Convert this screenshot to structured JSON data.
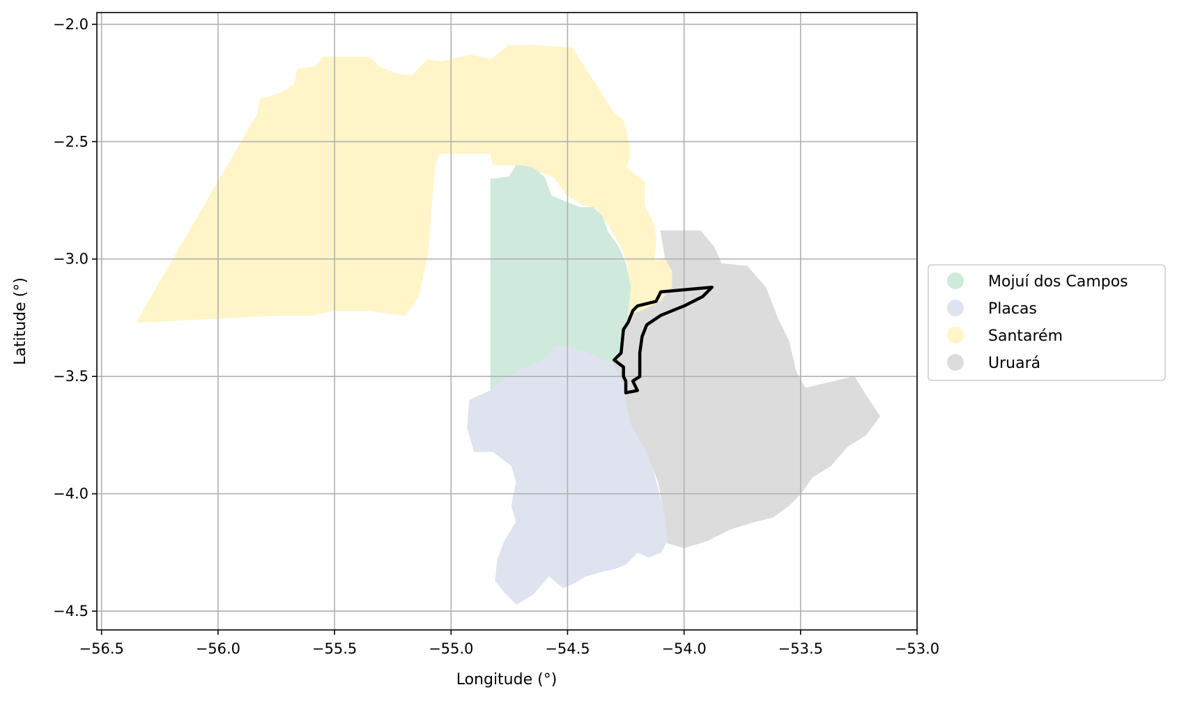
{
  "chart_data": {
    "type": "map",
    "xlabel": "Longitude (°)",
    "ylabel": "Latitude (°)",
    "xlim": [
      -56.52,
      -53.0
    ],
    "ylim": [
      -4.58,
      -1.95
    ],
    "grid": true,
    "x_ticks": [
      -56.5,
      -56.0,
      -55.5,
      -55.0,
      -54.5,
      -54.0,
      -53.5,
      -53.0
    ],
    "x_tick_labels": [
      "−56.5",
      "−56.0",
      "−55.5",
      "−55.0",
      "−54.5",
      "−54.0",
      "−53.5",
      "−53.0"
    ],
    "y_ticks": [
      -2.0,
      -2.5,
      -3.0,
      -3.5,
      -4.0,
      -4.5
    ],
    "y_tick_labels": [
      "−2.0",
      "−2.5",
      "−3.0",
      "−3.5",
      "−4.0",
      "−4.5"
    ],
    "legend_position": "center-right outside",
    "legend": [
      {
        "label": "Mojuí dos Campos",
        "color": "#cfeadc"
      },
      {
        "label": "Placas",
        "color": "#dfe3f0"
      },
      {
        "label": "Santarém",
        "color": "#fff5c8"
      },
      {
        "label": "Uruará",
        "color": "#dcdcdc"
      }
    ],
    "regions": [
      {
        "name": "Santarém",
        "color": "#fff5c8",
        "polygon": [
          [
            -56.35,
            -3.27
          ],
          [
            -55.83,
            -2.38
          ],
          [
            -55.82,
            -2.32
          ],
          [
            -55.72,
            -2.29
          ],
          [
            -55.67,
            -2.25
          ],
          [
            -55.66,
            -2.19
          ],
          [
            -55.58,
            -2.18
          ],
          [
            -55.55,
            -2.14
          ],
          [
            -55.35,
            -2.14
          ],
          [
            -55.31,
            -2.18
          ],
          [
            -55.24,
            -2.21
          ],
          [
            -55.17,
            -2.22
          ],
          [
            -55.1,
            -2.15
          ],
          [
            -55.04,
            -2.16
          ],
          [
            -54.92,
            -2.13
          ],
          [
            -54.83,
            -2.15
          ],
          [
            -54.75,
            -2.09
          ],
          [
            -54.63,
            -2.09
          ],
          [
            -54.48,
            -2.1
          ],
          [
            -54.3,
            -2.38
          ],
          [
            -54.26,
            -2.41
          ],
          [
            -54.24,
            -2.49
          ],
          [
            -54.23,
            -2.56
          ],
          [
            -54.25,
            -2.61
          ],
          [
            -54.17,
            -2.67
          ],
          [
            -54.17,
            -2.77
          ],
          [
            -54.13,
            -2.85
          ],
          [
            -54.12,
            -2.92
          ],
          [
            -54.13,
            -3.01
          ],
          [
            -54.08,
            -3.0
          ],
          [
            -54.05,
            -3.05
          ],
          [
            -54.05,
            -3.12
          ],
          [
            -54.1,
            -3.18
          ],
          [
            -54.18,
            -3.22
          ],
          [
            -54.24,
            -3.24
          ],
          [
            -54.24,
            -3.02
          ],
          [
            -54.27,
            -2.95
          ],
          [
            -54.32,
            -2.86
          ],
          [
            -54.38,
            -2.78
          ],
          [
            -54.43,
            -2.77
          ],
          [
            -54.5,
            -2.73
          ],
          [
            -54.56,
            -2.65
          ],
          [
            -54.7,
            -2.6
          ],
          [
            -54.82,
            -2.6
          ],
          [
            -54.83,
            -2.55
          ],
          [
            -54.96,
            -2.55
          ],
          [
            -55.05,
            -2.55
          ],
          [
            -55.07,
            -2.6
          ],
          [
            -55.1,
            -2.98
          ],
          [
            -55.14,
            -3.16
          ],
          [
            -55.2,
            -3.24
          ],
          [
            -55.27,
            -3.23
          ],
          [
            -55.35,
            -3.22
          ],
          [
            -55.5,
            -3.22
          ],
          [
            -55.6,
            -3.24
          ],
          [
            -55.75,
            -3.24
          ],
          [
            -55.95,
            -3.25
          ],
          [
            -56.15,
            -3.26
          ]
        ]
      },
      {
        "name": "Mojuí dos Campos",
        "color": "#cfeadc",
        "polygon": [
          [
            -54.83,
            -3.56
          ],
          [
            -54.83,
            -2.66
          ],
          [
            -54.75,
            -2.65
          ],
          [
            -54.72,
            -2.6
          ],
          [
            -54.65,
            -2.61
          ],
          [
            -54.6,
            -2.65
          ],
          [
            -54.57,
            -2.73
          ],
          [
            -54.5,
            -2.76
          ],
          [
            -54.45,
            -2.78
          ],
          [
            -54.39,
            -2.78
          ],
          [
            -54.35,
            -2.82
          ],
          [
            -54.33,
            -2.88
          ],
          [
            -54.28,
            -2.95
          ],
          [
            -54.25,
            -3.02
          ],
          [
            -54.23,
            -3.12
          ],
          [
            -54.24,
            -3.22
          ],
          [
            -54.25,
            -3.32
          ],
          [
            -54.26,
            -3.4
          ],
          [
            -54.3,
            -3.45
          ],
          [
            -54.36,
            -3.45
          ],
          [
            -54.45,
            -3.4
          ],
          [
            -54.5,
            -3.42
          ],
          [
            -54.56,
            -3.45
          ],
          [
            -54.63,
            -3.47
          ],
          [
            -54.7,
            -3.5
          ],
          [
            -54.78,
            -3.54
          ]
        ]
      },
      {
        "name": "Placas",
        "color": "#dfe3f0",
        "polygon": [
          [
            -54.83,
            -3.56
          ],
          [
            -54.78,
            -3.52
          ],
          [
            -54.7,
            -3.47
          ],
          [
            -54.62,
            -3.44
          ],
          [
            -54.55,
            -3.37
          ],
          [
            -54.48,
            -3.38
          ],
          [
            -54.42,
            -3.4
          ],
          [
            -54.35,
            -3.43
          ],
          [
            -54.3,
            -3.45
          ],
          [
            -54.25,
            -3.55
          ],
          [
            -54.23,
            -3.6
          ],
          [
            -54.23,
            -3.7
          ],
          [
            -54.16,
            -3.8
          ],
          [
            -54.12,
            -3.95
          ],
          [
            -54.08,
            -4.1
          ],
          [
            -54.06,
            -4.18
          ],
          [
            -54.1,
            -4.25
          ],
          [
            -54.15,
            -4.27
          ],
          [
            -54.2,
            -4.25
          ],
          [
            -54.25,
            -4.3
          ],
          [
            -54.3,
            -4.32
          ],
          [
            -54.35,
            -4.33
          ],
          [
            -54.42,
            -4.35
          ],
          [
            -54.47,
            -4.38
          ],
          [
            -54.52,
            -4.4
          ],
          [
            -54.58,
            -4.35
          ],
          [
            -54.65,
            -4.43
          ],
          [
            -54.72,
            -4.47
          ],
          [
            -54.77,
            -4.42
          ],
          [
            -54.81,
            -4.37
          ],
          [
            -54.8,
            -4.28
          ],
          [
            -54.77,
            -4.2
          ],
          [
            -54.72,
            -4.12
          ],
          [
            -54.74,
            -4.05
          ],
          [
            -54.72,
            -3.95
          ],
          [
            -54.74,
            -3.88
          ],
          [
            -54.78,
            -3.85
          ],
          [
            -54.82,
            -3.82
          ],
          [
            -54.9,
            -3.82
          ],
          [
            -54.93,
            -3.72
          ],
          [
            -54.92,
            -3.6
          ]
        ]
      },
      {
        "name": "Uruará",
        "color": "#dcdcdc",
        "polygon": [
          [
            -54.1,
            -2.88
          ],
          [
            -53.93,
            -2.88
          ],
          [
            -53.87,
            -2.95
          ],
          [
            -53.84,
            -3.02
          ],
          [
            -53.73,
            -3.03
          ],
          [
            -53.65,
            -3.12
          ],
          [
            -53.6,
            -3.25
          ],
          [
            -53.55,
            -3.35
          ],
          [
            -53.52,
            -3.48
          ],
          [
            -53.48,
            -3.55
          ],
          [
            -53.35,
            -3.52
          ],
          [
            -53.27,
            -3.5
          ],
          [
            -53.22,
            -3.58
          ],
          [
            -53.16,
            -3.67
          ],
          [
            -53.22,
            -3.75
          ],
          [
            -53.3,
            -3.8
          ],
          [
            -53.37,
            -3.88
          ],
          [
            -53.45,
            -3.93
          ],
          [
            -53.5,
            -4.0
          ],
          [
            -53.55,
            -4.05
          ],
          [
            -53.62,
            -4.1
          ],
          [
            -53.7,
            -4.12
          ],
          [
            -53.8,
            -4.15
          ],
          [
            -53.9,
            -4.2
          ],
          [
            -54.0,
            -4.23
          ],
          [
            -54.07,
            -4.21
          ],
          [
            -54.08,
            -4.1
          ],
          [
            -54.11,
            -3.95
          ],
          [
            -54.16,
            -3.82
          ],
          [
            -54.23,
            -3.7
          ],
          [
            -54.25,
            -3.6
          ],
          [
            -54.25,
            -3.55
          ],
          [
            -54.3,
            -3.45
          ],
          [
            -54.26,
            -3.4
          ],
          [
            -54.25,
            -3.32
          ],
          [
            -54.24,
            -3.24
          ],
          [
            -54.18,
            -3.22
          ],
          [
            -54.1,
            -3.18
          ],
          [
            -54.05,
            -3.12
          ],
          [
            -54.05,
            -3.05
          ],
          [
            -54.08,
            -3.0
          ]
        ]
      }
    ],
    "outline": {
      "color": "#000000",
      "polygon": [
        [
          -54.3,
          -3.43
        ],
        [
          -54.27,
          -3.4
        ],
        [
          -54.26,
          -3.3
        ],
        [
          -54.24,
          -3.27
        ],
        [
          -54.22,
          -3.22
        ],
        [
          -54.2,
          -3.2
        ],
        [
          -54.12,
          -3.18
        ],
        [
          -54.1,
          -3.14
        ],
        [
          -53.88,
          -3.12
        ],
        [
          -53.92,
          -3.16
        ],
        [
          -54.0,
          -3.2
        ],
        [
          -54.1,
          -3.24
        ],
        [
          -54.16,
          -3.28
        ],
        [
          -54.18,
          -3.33
        ],
        [
          -54.19,
          -3.4
        ],
        [
          -54.19,
          -3.5
        ],
        [
          -54.22,
          -3.52
        ],
        [
          -54.2,
          -3.56
        ],
        [
          -54.25,
          -3.57
        ],
        [
          -54.25,
          -3.52
        ],
        [
          -54.26,
          -3.5
        ],
        [
          -54.26,
          -3.46
        ]
      ]
    }
  }
}
